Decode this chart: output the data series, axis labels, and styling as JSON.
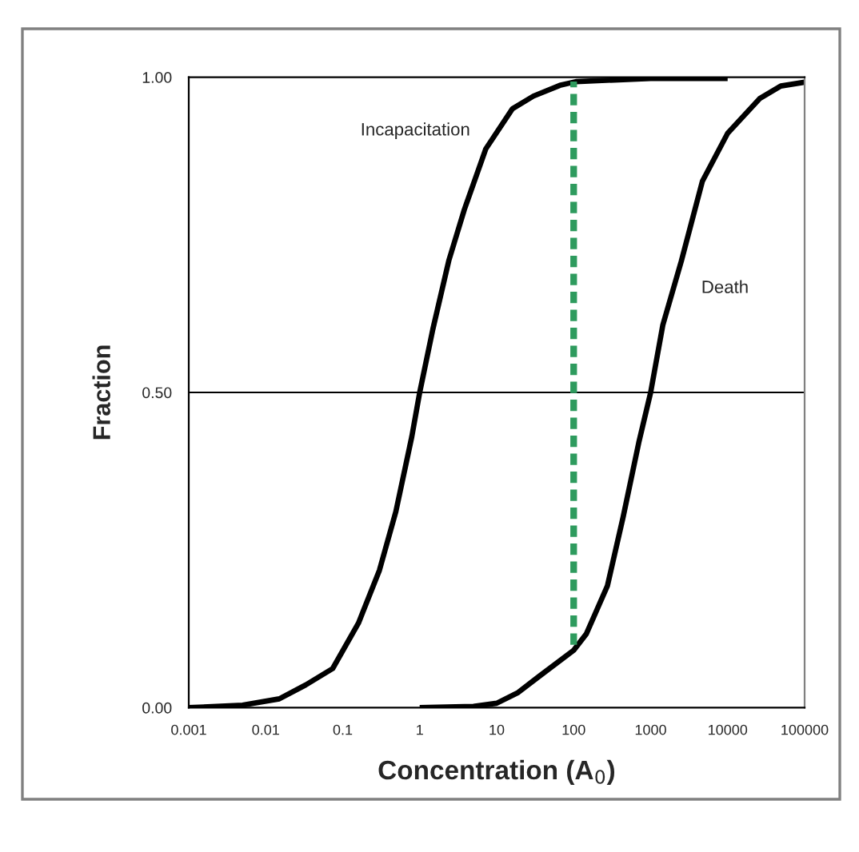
{
  "chart_data": {
    "type": "line",
    "xlabel": "Concentration (A$_{0}$)",
    "ylabel": "Fraction",
    "log": "x",
    "xlim": [
      0.001,
      100000
    ],
    "xticks": [
      0.001,
      0.01,
      0.1,
      1,
      10,
      100,
      1000,
      10000,
      100000
    ],
    "ylim": [
      0,
      1
    ],
    "yticks": [
      {
        "value": 0,
        "label": "0.00"
      },
      {
        "value": 0.5,
        "label": "0.50"
      },
      {
        "value": 1,
        "label": "1.00"
      }
    ],
    "ref_lines": [
      {
        "axis": "y",
        "value": 0.5,
        "color": "#000000"
      }
    ],
    "legend": false,
    "marker": "none",
    "series": [
      {
        "name": "Incapacitation",
        "color": "#000000",
        "line_style": "solid",
        "x": [
          0.001,
          0.005,
          0.015,
          0.033,
          0.074,
          0.16,
          0.3,
          0.49,
          0.79,
          1,
          1.48,
          2.4,
          3.8,
          7.2,
          16,
          30,
          66,
          107,
          1000,
          10000
        ],
        "values": [
          0,
          0.004,
          0.014,
          0.036,
          0.062,
          0.134,
          0.218,
          0.311,
          0.43,
          0.5,
          0.6,
          0.71,
          0.79,
          0.886,
          0.95,
          0.97,
          0.987,
          0.993,
          0.998,
          0.998
        ]
      },
      {
        "name": "Death",
        "color": "#000000",
        "line_style": "solid",
        "x": [
          1,
          5,
          10,
          19,
          35,
          100,
          146,
          274,
          440,
          700,
          1000,
          1440,
          2500,
          4700,
          10000,
          26000,
          49000,
          100000
        ],
        "values": [
          0,
          0.002,
          0.007,
          0.024,
          0.049,
          0.091,
          0.117,
          0.193,
          0.303,
          0.42,
          0.5,
          0.607,
          0.708,
          0.835,
          0.911,
          0.966,
          0.986,
          0.992
        ]
      },
      {
        "color": "#2e9b5e",
        "line_style": "dashed",
        "x": [
          100,
          100
        ],
        "values": [
          0.091,
          0.993
        ]
      }
    ]
  }
}
